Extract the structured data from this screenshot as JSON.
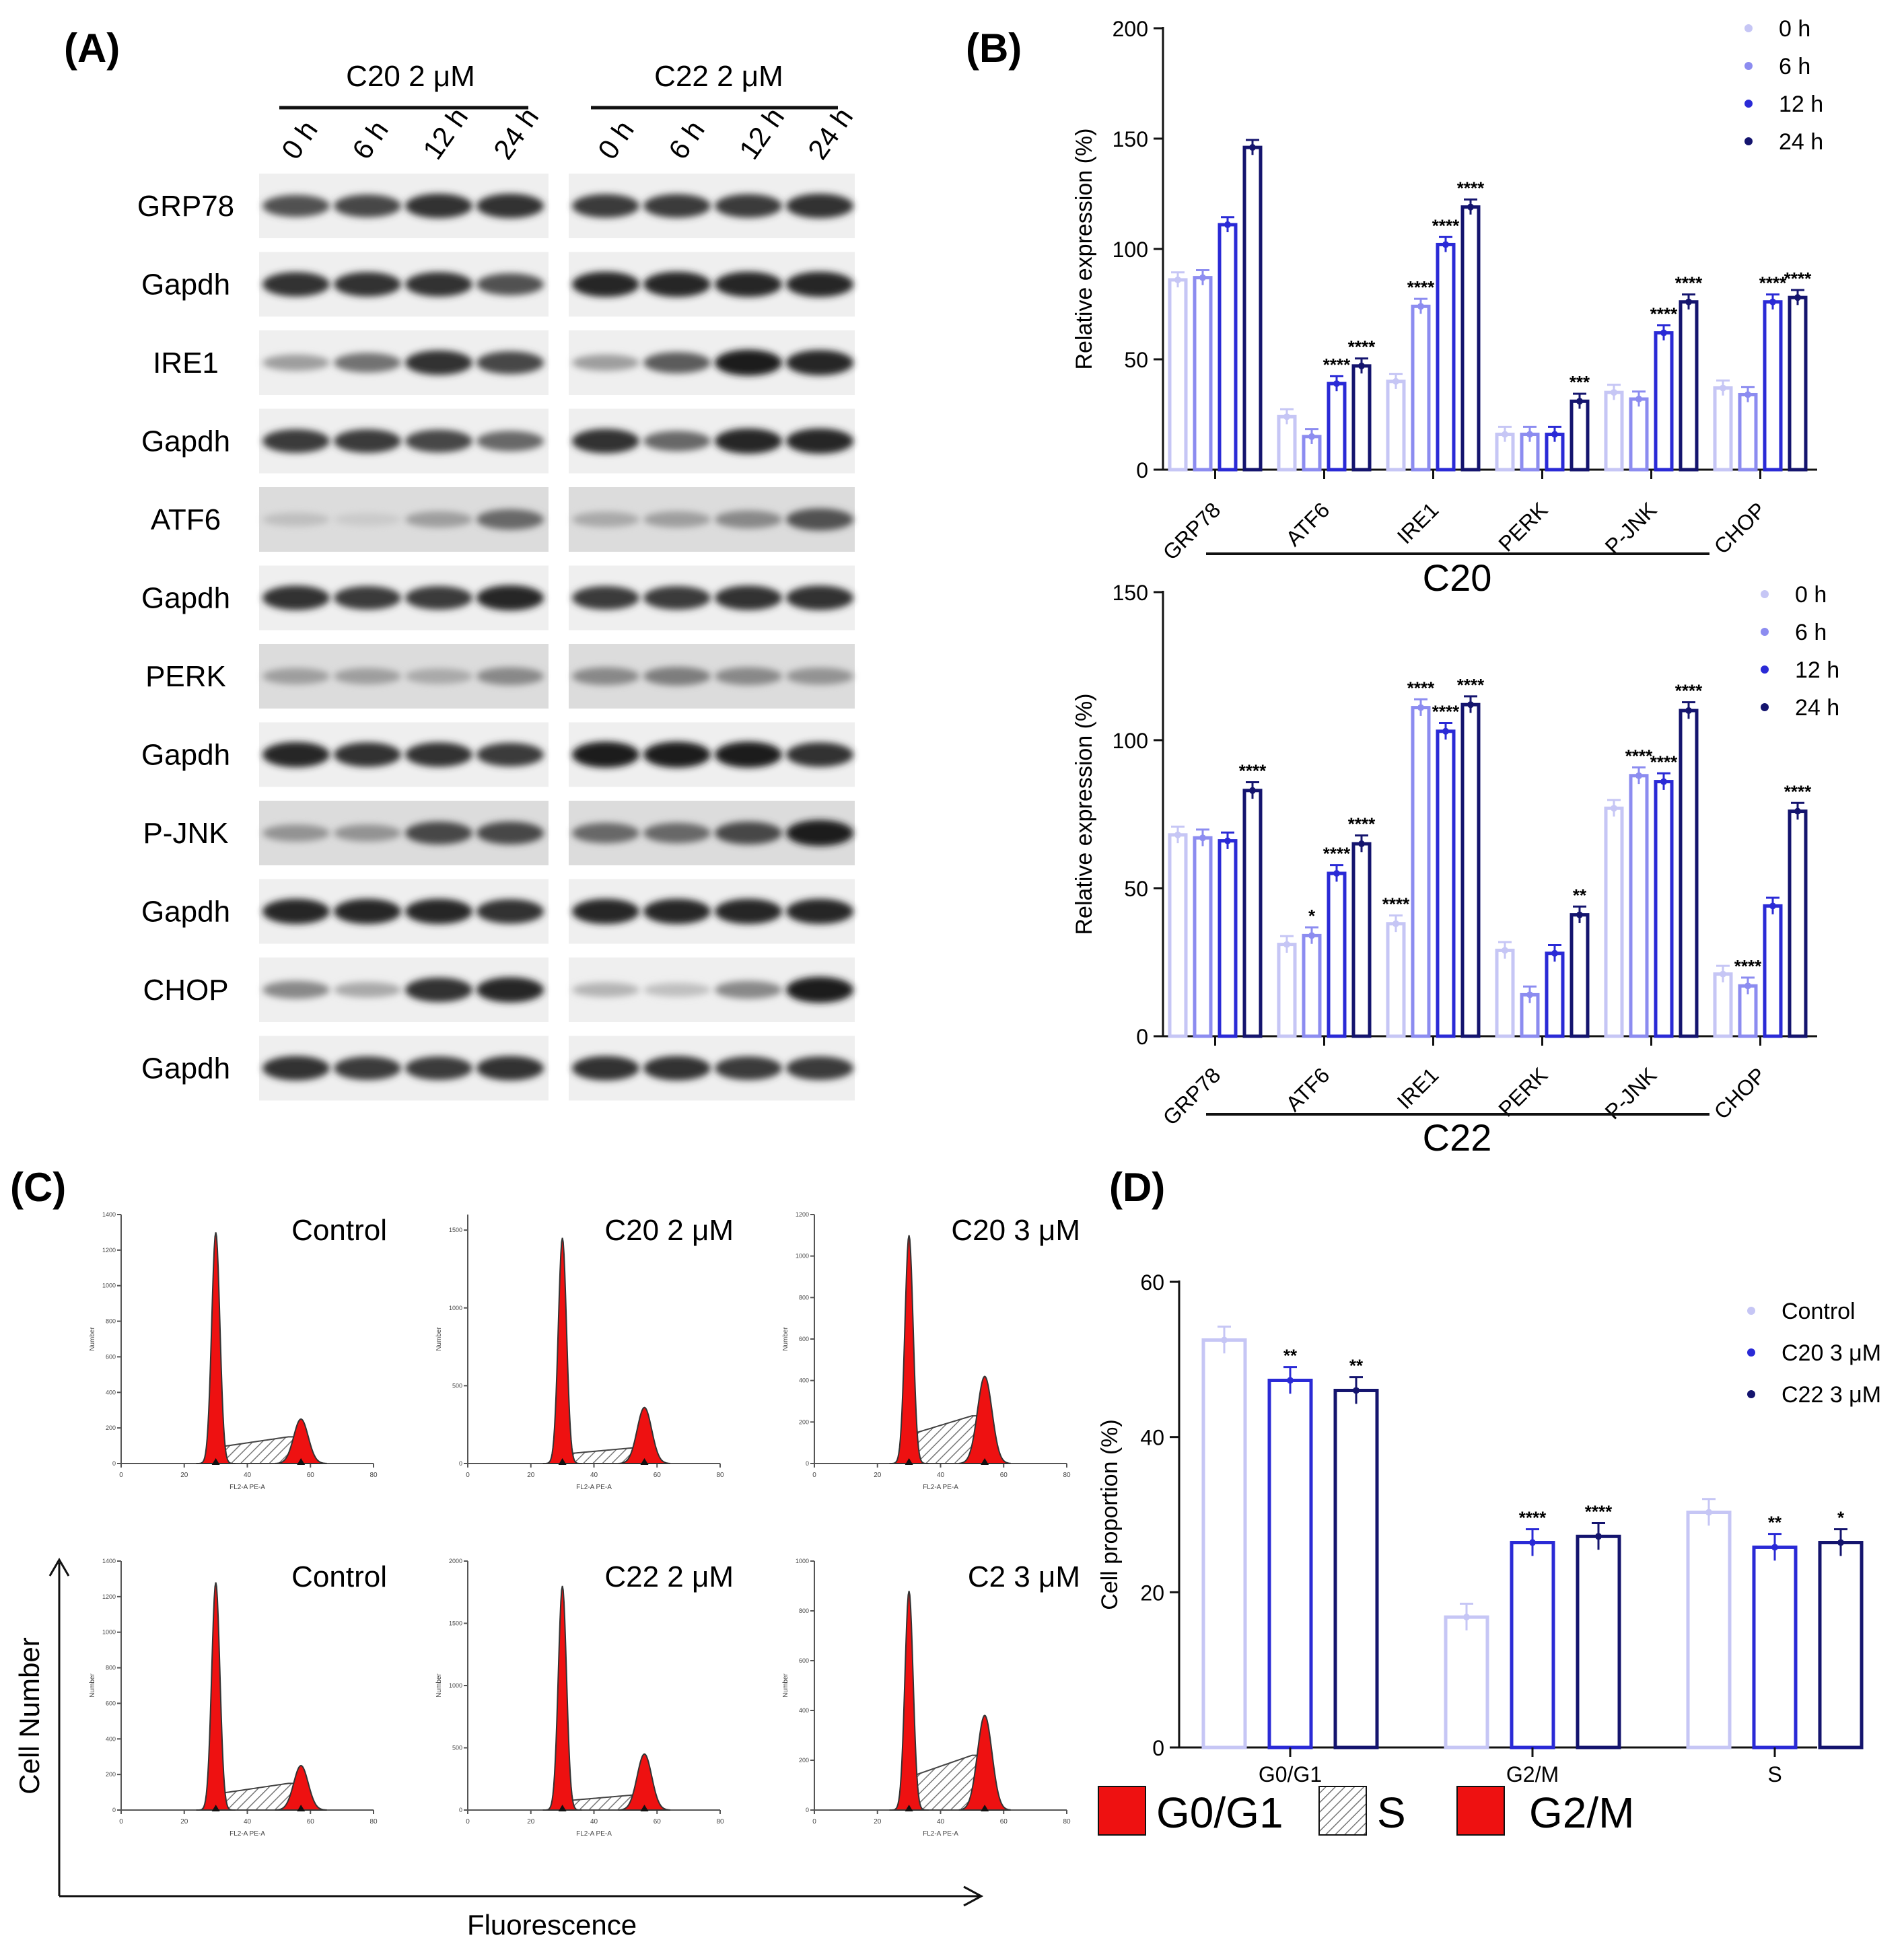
{
  "panel_labels": [
    "(A)",
    "(B)",
    "(C)",
    "(D)"
  ],
  "panel_a": {
    "groups": [
      "C20 2 μM",
      "C22 2 μM"
    ],
    "lanes": [
      "0 h",
      "6 h",
      "12 h",
      "24 h"
    ],
    "rows": [
      "GRP78",
      "Gapdh",
      "IRE1",
      "Gapdh",
      "ATF6",
      "Gapdh",
      "PERK",
      "Gapdh",
      "P-JNK",
      "Gapdh",
      "CHOP",
      "Gapdh"
    ],
    "band_intensity": [
      [
        [
          0.7,
          0.75,
          0.85,
          0.85
        ],
        [
          0.8,
          0.8,
          0.8,
          0.85
        ]
      ],
      [
        [
          0.85,
          0.85,
          0.85,
          0.7
        ],
        [
          0.9,
          0.9,
          0.9,
          0.9
        ]
      ],
      [
        [
          0.35,
          0.55,
          0.85,
          0.75
        ],
        [
          0.35,
          0.65,
          0.95,
          0.9
        ]
      ],
      [
        [
          0.8,
          0.8,
          0.75,
          0.6
        ],
        [
          0.85,
          0.6,
          0.9,
          0.9
        ]
      ],
      [
        [
          0.2,
          0.15,
          0.35,
          0.6
        ],
        [
          0.3,
          0.35,
          0.45,
          0.7
        ]
      ],
      [
        [
          0.85,
          0.8,
          0.8,
          0.9
        ],
        [
          0.8,
          0.8,
          0.85,
          0.85
        ]
      ],
      [
        [
          0.35,
          0.35,
          0.3,
          0.45
        ],
        [
          0.45,
          0.5,
          0.45,
          0.4
        ]
      ],
      [
        [
          0.9,
          0.85,
          0.85,
          0.8
        ],
        [
          0.95,
          0.95,
          0.95,
          0.85
        ]
      ],
      [
        [
          0.4,
          0.4,
          0.75,
          0.75
        ],
        [
          0.6,
          0.6,
          0.75,
          0.95
        ]
      ],
      [
        [
          0.9,
          0.9,
          0.9,
          0.85
        ],
        [
          0.9,
          0.9,
          0.9,
          0.9
        ]
      ],
      [
        [
          0.45,
          0.3,
          0.85,
          0.9
        ],
        [
          0.25,
          0.2,
          0.45,
          0.95
        ]
      ],
      [
        [
          0.85,
          0.8,
          0.8,
          0.85
        ],
        [
          0.85,
          0.85,
          0.8,
          0.8
        ]
      ]
    ]
  },
  "colors": {
    "c0": "#c6c6f5",
    "c1": "#8c8cf0",
    "c2": "#2a2ad6",
    "c3": "#14146e",
    "ctrl": "#c6c6f5",
    "c20": "#2a2ad6",
    "c22": "#14146e",
    "red": "#ee1111"
  },
  "chart_data": [
    {
      "type": "bar",
      "panel": "(B)",
      "ylabel": "Relative expression (%)",
      "ylim": [
        0,
        200
      ],
      "yticks": [
        "0",
        "50",
        "100",
        "150",
        "200"
      ],
      "categories": [
        "GRP78",
        "ATF6",
        "IRE1",
        "PERK",
        "P-JNK",
        "CHOP"
      ],
      "group_label": "C20",
      "legend_position": "top-right",
      "series": [
        {
          "name": "0 h",
          "values": [
            86,
            24,
            40,
            16,
            35,
            37
          ]
        },
        {
          "name": "6 h",
          "values": [
            87,
            15,
            74,
            16,
            32,
            34
          ]
        },
        {
          "name": "12 h",
          "values": [
            111,
            39,
            102,
            16,
            62,
            76
          ]
        },
        {
          "name": "24 h",
          "values": [
            146,
            47,
            119,
            31,
            76,
            78
          ]
        }
      ],
      "annotations": [
        [
          "",
          "",
          "",
          ""
        ],
        [
          "",
          "",
          "****",
          "****"
        ],
        [
          "",
          "****",
          "****",
          "****"
        ],
        [
          "",
          "",
          "",
          "***"
        ],
        [
          "",
          "",
          "****",
          "****"
        ],
        [
          "",
          "",
          "****",
          "****"
        ]
      ]
    },
    {
      "type": "bar",
      "panel": "(B)",
      "ylabel": "Relative expression (%)",
      "ylim": [
        0,
        150
      ],
      "yticks": [
        "0",
        "50",
        "100",
        "150"
      ],
      "categories": [
        "GRP78",
        "ATF6",
        "IRE1",
        "PERK",
        "P-JNK",
        "CHOP"
      ],
      "group_label": "C22",
      "legend_position": "top-right",
      "series": [
        {
          "name": "0 h",
          "values": [
            68,
            31,
            38,
            29,
            77,
            21
          ]
        },
        {
          "name": "6 h",
          "values": [
            67,
            34,
            111,
            14,
            88,
            17
          ]
        },
        {
          "name": "12 h",
          "values": [
            66,
            55,
            103,
            28,
            86,
            44
          ]
        },
        {
          "name": "24 h",
          "values": [
            83,
            65,
            112,
            41,
            110,
            76
          ]
        }
      ],
      "annotations": [
        [
          "",
          "",
          "",
          "****"
        ],
        [
          "",
          "*",
          "****",
          "****"
        ],
        [
          "****",
          "****",
          "****",
          "****"
        ],
        [
          "",
          "",
          "",
          "**"
        ],
        [
          "",
          "****",
          "****",
          "****"
        ],
        [
          "",
          "****",
          "",
          "****"
        ]
      ]
    },
    {
      "type": "bar",
      "panel": "(D)",
      "ylabel": "Cell proportion (%)",
      "ylim": [
        0,
        60
      ],
      "yticks": [
        "0",
        "20",
        "40",
        "60"
      ],
      "categories": [
        "G0/G1",
        "G2/M",
        "S"
      ],
      "legend_position": "top-right",
      "series": [
        {
          "name": "Control",
          "values": [
            52.5,
            16.8,
            30.3
          ]
        },
        {
          "name": "C20 3 μM",
          "values": [
            47.3,
            26.4,
            25.8
          ]
        },
        {
          "name": "C22 3 μM",
          "values": [
            46.0,
            27.2,
            26.4
          ]
        }
      ],
      "annotations": [
        [
          "",
          "**",
          "**"
        ],
        [
          "",
          "****",
          "****"
        ],
        [
          "",
          "**",
          "*"
        ]
      ]
    }
  ],
  "panel_c": {
    "plots": [
      {
        "label": "Control",
        "yticks": [
          "0",
          "200",
          "400",
          "600",
          "800",
          "1000",
          "1200",
          "1400"
        ],
        "ymax": 1400,
        "g1": 1300,
        "g2": 250,
        "s": 150,
        "g2pos": 57
      },
      {
        "label": "C20 2 μM",
        "yticks": [
          "0",
          "500",
          "1000",
          "1500"
        ],
        "ymax": 1600,
        "g1": 1450,
        "g2": 360,
        "s": 100,
        "g2pos": 56
      },
      {
        "label": "C20 3 μM",
        "yticks": [
          "0",
          "200",
          "400",
          "600",
          "800",
          "1000",
          "1200"
        ],
        "ymax": 1200,
        "g1": 1100,
        "g2": 420,
        "s": 230,
        "g2pos": 54
      },
      {
        "label": "Control",
        "yticks": [
          "0",
          "200",
          "400",
          "600",
          "800",
          "1000",
          "1200",
          "1400"
        ],
        "ymax": 1400,
        "g1": 1280,
        "g2": 250,
        "s": 150,
        "g2pos": 57
      },
      {
        "label": "C22 2 μM",
        "yticks": [
          "0",
          "500",
          "1000",
          "1500",
          "2000"
        ],
        "ymax": 2000,
        "g1": 1800,
        "g2": 450,
        "s": 120,
        "g2pos": 56
      },
      {
        "label": "C2 3 μM",
        "yticks": [
          "0",
          "200",
          "400",
          "600",
          "800",
          "1000"
        ],
        "ymax": 1000,
        "g1": 880,
        "g2": 380,
        "s": 220,
        "g2pos": 54
      }
    ],
    "xticks": [
      "0",
      "20",
      "40",
      "60",
      "80"
    ],
    "ylabel_small": "Number",
    "xlabel_small": "FL2-A PE-A",
    "ylabel": "Cell Number",
    "xlabel": "Fluorescence",
    "phase_legend": [
      "G0/G1",
      "S",
      "G2/M"
    ]
  }
}
